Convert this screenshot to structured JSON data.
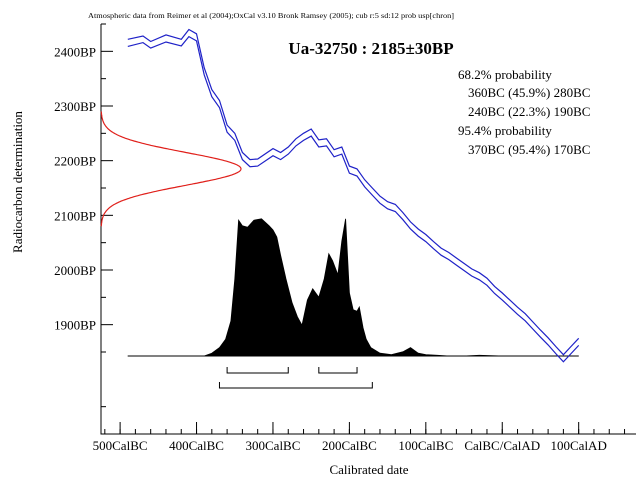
{
  "chart_data": {
    "type": "area",
    "source_note": "Atmospheric data from Reimer et al (2004);OxCal v3.10 Bronk Ramsey (2005); cub r:5 sd:12 prob usp[chron]",
    "title": "Ua-32750 : 2185±30BP",
    "xlabel": "Calibrated date",
    "ylabel": "Radiocarbon determination",
    "x_ticks": [
      {
        "value": -500,
        "label": "500CalBC"
      },
      {
        "value": -400,
        "label": "400CalBC"
      },
      {
        "value": -300,
        "label": "300CalBC"
      },
      {
        "value": -200,
        "label": "200CalBC"
      },
      {
        "value": -100,
        "label": "100CalBC"
      },
      {
        "value": 0,
        "label": "CalBC/CalAD"
      },
      {
        "value": 100,
        "label": "100CalAD"
      }
    ],
    "y_ticks": [
      {
        "value": 2400,
        "label": "2400BP"
      },
      {
        "value": 2300,
        "label": "2300BP"
      },
      {
        "value": 2200,
        "label": "2200BP"
      },
      {
        "value": 2100,
        "label": "2100BP"
      },
      {
        "value": 2000,
        "label": "2000BP"
      },
      {
        "value": 1900,
        "label": "1900BP"
      }
    ],
    "xlim": [
      -525,
      175
    ],
    "ylim": [
      1700,
      2450
    ],
    "probability_text": [
      "68.2% probability",
      "360BC (45.9%) 280BC",
      "240BC (22.3%) 190BC",
      "95.4% probability",
      "370BC (95.4%) 170BC"
    ],
    "measurement": {
      "mean": 2185,
      "error": 30
    },
    "calibration_curve": {
      "x": [
        -490,
        -470,
        -460,
        -440,
        -420,
        -410,
        -400,
        -390,
        -380,
        -370,
        -360,
        -350,
        -340,
        -330,
        -320,
        -300,
        -290,
        -280,
        -270,
        -260,
        -250,
        -240,
        -230,
        -220,
        -210,
        -200,
        -190,
        -180,
        -170,
        -160,
        -150,
        -140,
        -130,
        -120,
        -110,
        -100,
        -90,
        -80,
        -70,
        -60,
        -50,
        -40,
        -30,
        -20,
        -10,
        0,
        10,
        20,
        30,
        40,
        50,
        60,
        70,
        80,
        90,
        100
      ],
      "upper": [
        2422,
        2428,
        2418,
        2430,
        2422,
        2440,
        2432,
        2370,
        2330,
        2310,
        2265,
        2250,
        2215,
        2202,
        2203,
        2222,
        2215,
        2225,
        2240,
        2250,
        2258,
        2238,
        2240,
        2220,
        2225,
        2190,
        2185,
        2165,
        2150,
        2135,
        2125,
        2120,
        2105,
        2088,
        2075,
        2065,
        2052,
        2040,
        2032,
        2022,
        2012,
        2002,
        1995,
        1985,
        1970,
        1958,
        1945,
        1932,
        1920,
        1905,
        1890,
        1876,
        1860,
        1845,
        1860,
        1875
      ],
      "lower": [
        2409,
        2416,
        2406,
        2417,
        2410,
        2427,
        2419,
        2357,
        2317,
        2297,
        2252,
        2237,
        2202,
        2189,
        2190,
        2209,
        2202,
        2212,
        2227,
        2237,
        2245,
        2225,
        2227,
        2207,
        2212,
        2177,
        2172,
        2152,
        2137,
        2122,
        2112,
        2107,
        2092,
        2075,
        2062,
        2052,
        2039,
        2027,
        2019,
        2009,
        1999,
        1989,
        1982,
        1972,
        1957,
        1945,
        1932,
        1919,
        1907,
        1892,
        1877,
        1863,
        1847,
        1832,
        1847,
        1862
      ]
    },
    "posterior_distribution": {
      "x": [
        -490,
        -390,
        -380,
        -370,
        -362,
        -355,
        -350,
        -345,
        -340,
        -333,
        -325,
        -315,
        -305,
        -300,
        -295,
        -290,
        -283,
        -275,
        -268,
        -262,
        -255,
        -248,
        -240,
        -233,
        -227,
        -222,
        -215,
        -210,
        -205,
        -200,
        -195,
        -190,
        -187,
        -182,
        -178,
        -172,
        -160,
        -145,
        -130,
        -120,
        -110,
        -100,
        -85,
        -70,
        -50,
        -30,
        0,
        100
      ],
      "density": [
        0,
        0,
        0.02,
        0.06,
        0.12,
        0.25,
        0.55,
        0.97,
        0.93,
        0.92,
        0.97,
        0.98,
        0.93,
        0.9,
        0.85,
        0.72,
        0.55,
        0.38,
        0.28,
        0.22,
        0.4,
        0.48,
        0.42,
        0.55,
        0.73,
        0.68,
        0.58,
        0.82,
        0.98,
        0.45,
        0.33,
        0.32,
        0.35,
        0.2,
        0.12,
        0.06,
        0.02,
        0.01,
        0.03,
        0.06,
        0.02,
        0.01,
        0.005,
        0,
        0,
        0.005,
        0,
        0
      ]
    },
    "ranges_68": [
      [
        -360,
        -280
      ],
      [
        -240,
        -190
      ]
    ],
    "range_95": [
      -370,
      -170
    ]
  }
}
